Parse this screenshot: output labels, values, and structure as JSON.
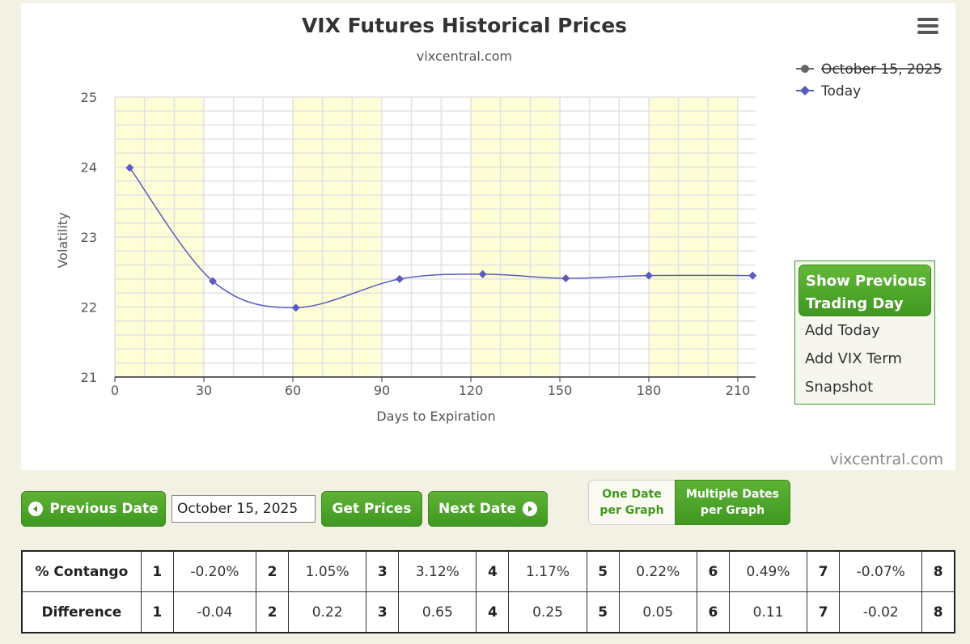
{
  "chart_data": {
    "type": "line",
    "title": "VIX Futures Historical Prices",
    "subtitle": "vixcentral.com",
    "xlabel": "Days to Expiration",
    "ylabel": "Volatility",
    "xlim": [
      0,
      216
    ],
    "ylim": [
      21,
      25
    ],
    "x_ticks": [
      "0",
      "30",
      "60",
      "90",
      "120",
      "150",
      "180",
      "210"
    ],
    "y_ticks": [
      "21",
      "22",
      "23",
      "24",
      "25"
    ],
    "grid": true,
    "shaded_bands_x": [
      [
        0,
        30
      ],
      [
        60,
        90
      ],
      [
        120,
        150
      ],
      [
        180,
        210
      ]
    ],
    "legend_placement": "top-right",
    "series": [
      {
        "name": "October 15, 2025",
        "hidden": true,
        "color": "#666666",
        "x": [],
        "y": []
      },
      {
        "name": "Today",
        "color": "#5b5bbf",
        "x": [
          5,
          33,
          61,
          96,
          124,
          152,
          180,
          215
        ],
        "y": [
          23.99,
          22.37,
          21.99,
          22.4,
          22.47,
          22.41,
          22.45,
          22.45
        ]
      }
    ],
    "credit": "vixcentral.com"
  },
  "menu": {
    "icon": "hamburger-icon"
  },
  "options": {
    "show_previous": "Show Previous Trading Day",
    "show_previous_line1": "Show Previous",
    "show_previous_line2": "Trading Day",
    "add_today": "Add Today",
    "add_vix_term": "Add VIX Term",
    "snapshot": "Snapshot"
  },
  "controls": {
    "previous_date": "Previous Date",
    "date_value": "October 15, 2025",
    "get_prices": "Get Prices",
    "next_date": "Next Date",
    "one_date_line1": "One Date",
    "one_date_line2": "per Graph",
    "multi_dates_line1": "Multiple Dates",
    "multi_dates_line2": "per Graph"
  },
  "table": {
    "contango_label": "% Contango",
    "difference_label": "Difference",
    "contango": [
      {
        "n": "1",
        "v": "-0.20%"
      },
      {
        "n": "2",
        "v": "1.05%"
      },
      {
        "n": "3",
        "v": "3.12%"
      },
      {
        "n": "4",
        "v": "1.17%"
      },
      {
        "n": "5",
        "v": "0.22%"
      },
      {
        "n": "6",
        "v": "0.49%"
      },
      {
        "n": "7",
        "v": "-0.07%"
      },
      {
        "n": "8",
        "v": ""
      }
    ],
    "difference": [
      {
        "n": "1",
        "v": "-0.04"
      },
      {
        "n": "2",
        "v": "0.22"
      },
      {
        "n": "3",
        "v": "0.65"
      },
      {
        "n": "4",
        "v": "0.25"
      },
      {
        "n": "5",
        "v": "0.05"
      },
      {
        "n": "6",
        "v": "0.11"
      },
      {
        "n": "7",
        "v": "-0.02"
      },
      {
        "n": "8",
        "v": ""
      }
    ]
  },
  "colors": {
    "accent": "#4a9e25",
    "series": "#5b5bbf",
    "band": "#fdfdd6"
  }
}
